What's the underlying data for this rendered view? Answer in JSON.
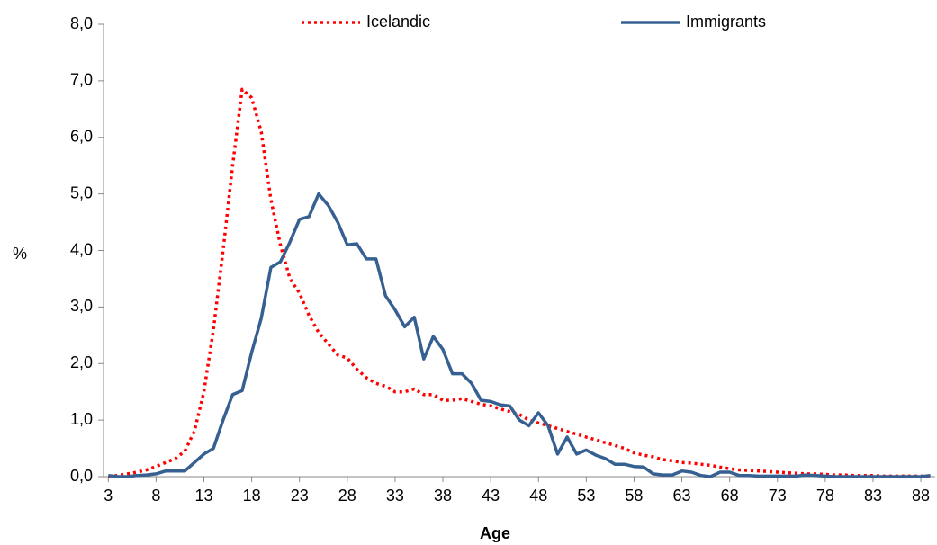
{
  "chart_data": {
    "type": "line",
    "x_label": "Age",
    "y_label": "%",
    "x": [
      3,
      4,
      5,
      6,
      7,
      8,
      9,
      10,
      11,
      12,
      13,
      14,
      15,
      16,
      17,
      18,
      19,
      20,
      21,
      22,
      23,
      24,
      25,
      26,
      27,
      28,
      29,
      30,
      31,
      32,
      33,
      34,
      35,
      36,
      37,
      38,
      39,
      40,
      41,
      42,
      43,
      44,
      45,
      46,
      47,
      48,
      49,
      50,
      51,
      52,
      53,
      54,
      55,
      56,
      57,
      58,
      59,
      60,
      61,
      62,
      63,
      64,
      65,
      66,
      67,
      68,
      69,
      70,
      71,
      72,
      73,
      74,
      75,
      76,
      77,
      78,
      79,
      80,
      81,
      82,
      83,
      84,
      85,
      86,
      87,
      88,
      89
    ],
    "series": [
      {
        "name": "Icelandic",
        "color": "#ff0000",
        "dash": "dotted",
        "values": [
          0.0,
          0.02,
          0.05,
          0.08,
          0.12,
          0.18,
          0.25,
          0.32,
          0.45,
          0.8,
          1.5,
          2.6,
          4.0,
          5.5,
          6.85,
          6.7,
          6.1,
          4.9,
          4.1,
          3.5,
          3.25,
          2.85,
          2.55,
          2.35,
          2.15,
          2.1,
          1.9,
          1.75,
          1.65,
          1.6,
          1.5,
          1.5,
          1.55,
          1.45,
          1.45,
          1.35,
          1.35,
          1.38,
          1.33,
          1.28,
          1.25,
          1.2,
          1.15,
          1.1,
          1.0,
          0.95,
          0.9,
          0.85,
          0.8,
          0.75,
          0.7,
          0.65,
          0.6,
          0.55,
          0.5,
          0.42,
          0.38,
          0.35,
          0.3,
          0.28,
          0.25,
          0.24,
          0.22,
          0.2,
          0.17,
          0.14,
          0.12,
          0.11,
          0.1,
          0.09,
          0.08,
          0.07,
          0.06,
          0.05,
          0.05,
          0.04,
          0.03,
          0.03,
          0.02,
          0.02,
          0.02,
          0.01,
          0.01,
          0.01,
          0.01,
          0.01,
          0.01
        ]
      },
      {
        "name": "Immigrants",
        "color": "#376092",
        "dash": "solid",
        "values": [
          0.02,
          0.0,
          0.0,
          0.02,
          0.03,
          0.05,
          0.1,
          0.1,
          0.1,
          0.25,
          0.4,
          0.5,
          1.0,
          1.45,
          1.52,
          2.2,
          2.8,
          3.7,
          3.8,
          4.15,
          4.55,
          4.6,
          5.0,
          4.8,
          4.5,
          4.1,
          4.12,
          3.85,
          3.85,
          3.2,
          2.95,
          2.65,
          2.82,
          2.08,
          2.48,
          2.25,
          1.82,
          1.82,
          1.65,
          1.35,
          1.33,
          1.27,
          1.25,
          1.0,
          0.9,
          1.13,
          0.9,
          0.4,
          0.7,
          0.4,
          0.47,
          0.38,
          0.32,
          0.22,
          0.22,
          0.18,
          0.17,
          0.05,
          0.03,
          0.03,
          0.1,
          0.08,
          0.02,
          0.0,
          0.08,
          0.08,
          0.02,
          0.02,
          0.01,
          0.01,
          0.01,
          0.01,
          0.01,
          0.03,
          0.02,
          0.01,
          0.0,
          0.0,
          0.0,
          0.0,
          0.0,
          0.0,
          0.0,
          0.0,
          0.0,
          0.0,
          0.02
        ]
      }
    ],
    "xlim": [
      2.5,
      89.5
    ],
    "xticks": [
      3,
      8,
      13,
      18,
      23,
      28,
      33,
      38,
      43,
      48,
      53,
      58,
      63,
      68,
      73,
      78,
      83,
      88
    ],
    "ylim": [
      0,
      8
    ],
    "yticks": [
      {
        "value": 0,
        "label": "0,0"
      },
      {
        "value": 1,
        "label": "1,0"
      },
      {
        "value": 2,
        "label": "2,0"
      },
      {
        "value": 3,
        "label": "3,0"
      },
      {
        "value": 4,
        "label": "4,0"
      },
      {
        "value": 5,
        "label": "5,0"
      },
      {
        "value": 6,
        "label": "6,0"
      },
      {
        "value": 7,
        "label": "7,0"
      },
      {
        "value": 8,
        "label": "8,0"
      }
    ],
    "legend": "top",
    "grid": false
  }
}
